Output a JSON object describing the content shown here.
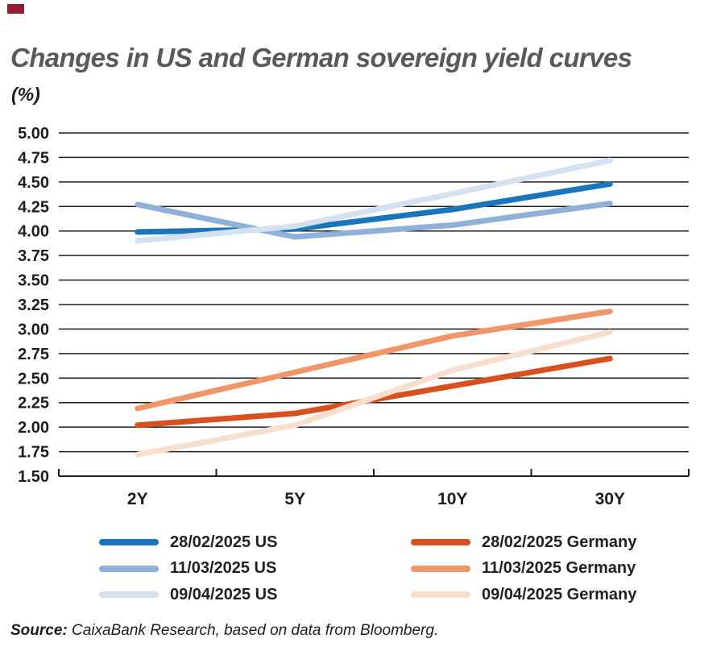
{
  "corner_marker_color": "#951b2e",
  "chart_data": {
    "type": "line",
    "title": "Changes in US and German sovereign yield curves",
    "subtitle": "(%)",
    "categories": [
      "2Y",
      "5Y",
      "10Y",
      "30Y"
    ],
    "xlabel": "",
    "ylabel": "",
    "ylim": [
      1.5,
      5.0
    ],
    "ytick_step": 0.25,
    "ytick_labels": [
      "5.00",
      "4.75",
      "4.50",
      "4.25",
      "4.00",
      "3.75",
      "3.50",
      "3.25",
      "3.00",
      "2.75",
      "2.50",
      "2.25",
      "2.00",
      "1.75",
      "1.50"
    ],
    "grid": "horizontal",
    "grid_color": "#1d1d1b",
    "legend_position": "bottom",
    "series": [
      {
        "name": "28/02/2025 US",
        "color": "#1b75bc",
        "values": [
          3.99,
          4.02,
          4.22,
          4.48
        ]
      },
      {
        "name": "11/03/2025 US",
        "color": "#8fb0d9",
        "values": [
          4.27,
          3.94,
          4.06,
          4.28
        ]
      },
      {
        "name": "09/04/2025 US",
        "color": "#d3e1f1",
        "values": [
          3.9,
          4.05,
          4.38,
          4.72
        ]
      },
      {
        "name": "28/02/2025 Germany",
        "color": "#d9501e",
        "values": [
          2.02,
          2.14,
          2.42,
          2.7
        ]
      },
      {
        "name": "11/03/2025 Germany",
        "color": "#f09669",
        "values": [
          2.19,
          2.56,
          2.93,
          3.18
        ]
      },
      {
        "name": "09/04/2025 Germany",
        "color": "#f8decc",
        "values": [
          1.72,
          2.02,
          2.58,
          2.97
        ]
      }
    ]
  },
  "source": {
    "label": "Source:",
    "text": " CaixaBank Research, based on data from Bloomberg."
  }
}
